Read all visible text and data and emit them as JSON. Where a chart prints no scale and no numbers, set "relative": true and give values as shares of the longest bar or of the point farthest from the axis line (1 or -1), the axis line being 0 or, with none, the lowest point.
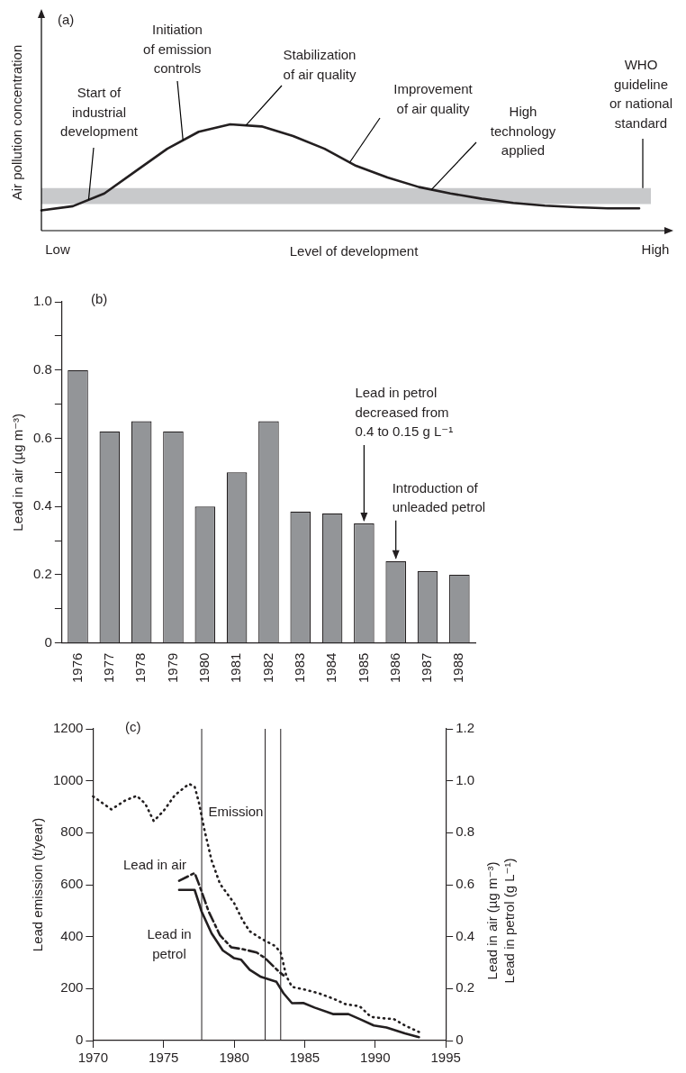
{
  "chart_data": [
    {
      "type": "line",
      "title": "(a)",
      "xlabel": "Level of development",
      "ylabel": "Air pollution concentration",
      "relative": true,
      "marker": "none",
      "line_style": "solid",
      "categories": [
        null,
        null,
        null,
        null,
        null,
        null,
        null,
        null,
        null,
        null,
        null,
        null,
        null,
        null,
        null,
        null,
        null,
        null,
        null,
        null
      ],
      "series": [
        {
          "color": "#231f20",
          "values": [
            0.19,
            0.23,
            0.35,
            0.56,
            0.77,
            0.93,
            1,
            0.98,
            0.89,
            0.77,
            0.61,
            0.5,
            0.41,
            0.35,
            0.3,
            0.26,
            0.235,
            0.22,
            0.21,
            0.21
          ]
        }
      ],
      "bands": [
        {
          "axis": "y",
          "from": 0.25,
          "to": 0.4,
          "label": "WHO guideline or national standard",
          "color": "#c8c9cb"
        }
      ],
      "annotations": [
        "Start of industrial development",
        "Initiation of emission controls",
        "Stabilization of air quality",
        "Improvement of air quality",
        "High technology applied",
        "Low",
        "High"
      ]
    },
    {
      "type": "bar",
      "title": "(b)",
      "ylabel": "Lead in air (µg m⁻³)",
      "categories": [
        "1976",
        "1977",
        "1978",
        "1979",
        "1980",
        "1981",
        "1982",
        "1983",
        "1984",
        "1985",
        "1986",
        "1987",
        "1988"
      ],
      "values": [
        0.8,
        0.62,
        0.65,
        0.62,
        0.4,
        0.5,
        0.65,
        0.385,
        0.38,
        0.35,
        0.24,
        0.21,
        0.2
      ],
      "color": "#939598",
      "ylim": [
        0,
        1
      ],
      "yticks": [
        0,
        {
          "value": 0.1,
          "label": null
        },
        0.2,
        {
          "value": 0.3,
          "label": null
        },
        0.4,
        {
          "value": 0.5,
          "label": null
        },
        0.6,
        {
          "value": 0.7,
          "label": null
        },
        0.8,
        {
          "value": 0.9,
          "label": null
        },
        {
          "value": 1,
          "label": "1.0"
        }
      ],
      "annotations": [
        {
          "text": "Lead in petrol decreased from 0.4 to 0.15 g L⁻¹",
          "x": "1985",
          "y": 0.35
        },
        {
          "text": "Introduction of unleaded petrol",
          "x": "1986",
          "y": 0.24
        }
      ]
    },
    {
      "type": "line",
      "title": "(c)",
      "ylabel": "Lead emission (t/year)",
      "y2label": "Lead in air (µg m⁻³)\nLead in petrol (g L⁻¹)",
      "marker": "none",
      "xlim": [
        1970,
        1995
      ],
      "xticks": [
        1970,
        1975,
        1980,
        1985,
        1990,
        1995
      ],
      "ylim": [
        0,
        1200
      ],
      "yticks": [
        0,
        200,
        400,
        600,
        800,
        1000,
        1200
      ],
      "y2lim": [
        0,
        1.2
      ],
      "y2ticks": [
        0,
        0.2,
        0.4,
        0.6,
        0.8,
        {
          "value": 1,
          "label": "1.0"
        },
        1.2
      ],
      "series": [
        {
          "name": "Emission",
          "color": "#231f20",
          "line_style": "dotted",
          "x": [
            1970,
            1971.3,
            1972.3,
            1973.1,
            1973.7,
            1974.3,
            1975,
            1975.8,
            1976.8,
            1977.2,
            1977.5,
            1977.9,
            1978.4,
            1979,
            1980,
            1980.6,
            1981.1,
            1981.9,
            1982.9,
            1983.3,
            1983.7,
            1984.1,
            1985.1,
            1986,
            1987,
            1987.9,
            1988.9,
            1989.7,
            1990.5,
            1991.3,
            1992.1,
            1993.1
          ],
          "values": [
            940,
            890,
            925,
            942,
            912,
            845,
            884,
            945,
            988,
            978,
            917,
            810,
            694,
            603,
            529,
            463,
            421,
            393,
            364,
            339,
            248,
            207,
            195,
            182,
            162,
            140,
            132,
            91,
            86,
            83,
            58,
            33
          ]
        },
        {
          "name": "Lead in air",
          "color": "#231f20",
          "line_style": "dashed",
          "axis": "y2",
          "x": [
            1976.1,
            1977.2,
            1977.5,
            1978.2,
            1979,
            1979.8,
            1980.6,
            1981.6,
            1982.2,
            1983.2,
            1983.5
          ],
          "values": [
            0.615,
            0.645,
            0.603,
            0.496,
            0.405,
            0.359,
            0.352,
            0.339,
            0.317,
            0.264,
            0.251
          ]
        },
        {
          "name": "Lead in petrol",
          "color": "#231f20",
          "line_style": "solid",
          "axis": "y2",
          "x": [
            1976.1,
            1977.2,
            1977.7,
            1978.4,
            1979.2,
            1980,
            1980.5,
            1981.1,
            1981.9,
            1983,
            1983.5,
            1984.1,
            1984.9,
            1985.7,
            1987,
            1988.1,
            1988.9,
            1989.9,
            1990.8,
            1992.1,
            1993.1
          ],
          "values": [
            0.58,
            0.58,
            0.496,
            0.413,
            0.347,
            0.317,
            0.311,
            0.273,
            0.245,
            0.226,
            0.182,
            0.144,
            0.145,
            0.127,
            0.102,
            0.102,
            0.083,
            0.058,
            0.05,
            0.028,
            0.013
          ]
        }
      ],
      "ref_lines": [
        {
          "axis": "x",
          "value": 1977.7,
          "color": "#231f20"
        },
        {
          "axis": "x",
          "value": 1982.2,
          "color": "#231f20"
        },
        {
          "axis": "x",
          "value": 1983.3,
          "color": "#231f20"
        }
      ]
    }
  ]
}
